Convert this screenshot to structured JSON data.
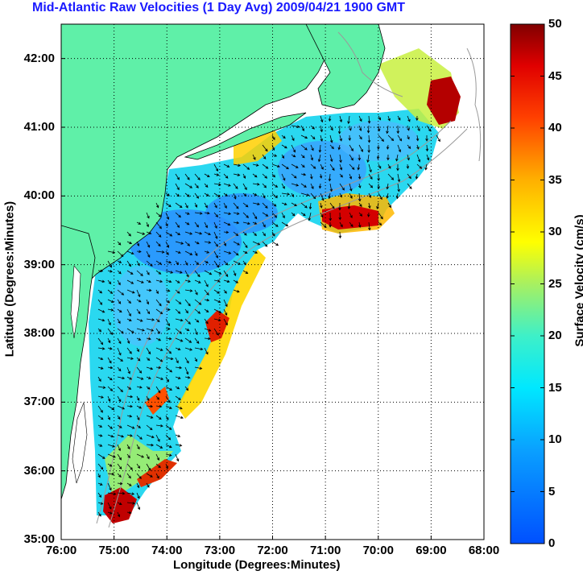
{
  "title": "Mid-Atlantic Raw Velocities (1 Day Avg) 2009/04/21 1900 GMT",
  "xlabel": "Longitude (Degrees:Minutes)",
  "ylabel": "Latitude (Degrees:Minutes)",
  "colorbar_label": "Surface Velocity (cm/s)",
  "chart_data": {
    "type": "heatmap",
    "title": "Mid-Atlantic Raw Velocities (1 Day Avg) 2009/04/21 1900 GMT",
    "xlabel": "Longitude (Degrees:Minutes)",
    "ylabel": "Latitude (Degrees:Minutes)",
    "x_ticks": [
      "76:00",
      "75:00",
      "74:00",
      "73:00",
      "72:00",
      "71:00",
      "70:00",
      "69:00",
      "68:00"
    ],
    "y_ticks": [
      "35:00",
      "36:00",
      "37:00",
      "38:00",
      "39:00",
      "40:00",
      "41:00",
      "42:00"
    ],
    "xlim": [
      -76.0,
      -68.0
    ],
    "ylim": [
      35.0,
      42.5
    ],
    "grid": true,
    "colorbar": {
      "label": "Surface Velocity (cm/s)",
      "range": [
        0,
        50
      ],
      "ticks": [
        "0",
        "5",
        "10",
        "15",
        "20",
        "25",
        "30",
        "35",
        "40",
        "45",
        "50"
      ],
      "colormap": "jet"
    },
    "colors": {
      "land": "#5ff0a8",
      "title": "#1a1aff"
    },
    "high_velocity_regions": [
      {
        "lon": -68.8,
        "lat": 41.3,
        "speed_cm_s": 48
      },
      {
        "lon": -70.5,
        "lat": 39.8,
        "speed_cm_s": 47
      },
      {
        "lon": -73.0,
        "lat": 38.2,
        "speed_cm_s": 45
      },
      {
        "lon": -75.0,
        "lat": 35.3,
        "speed_cm_s": 45
      },
      {
        "lon": -74.1,
        "lat": 36.0,
        "speed_cm_s": 40
      },
      {
        "lon": -74.0,
        "lat": 37.2,
        "speed_cm_s": 40
      }
    ]
  }
}
